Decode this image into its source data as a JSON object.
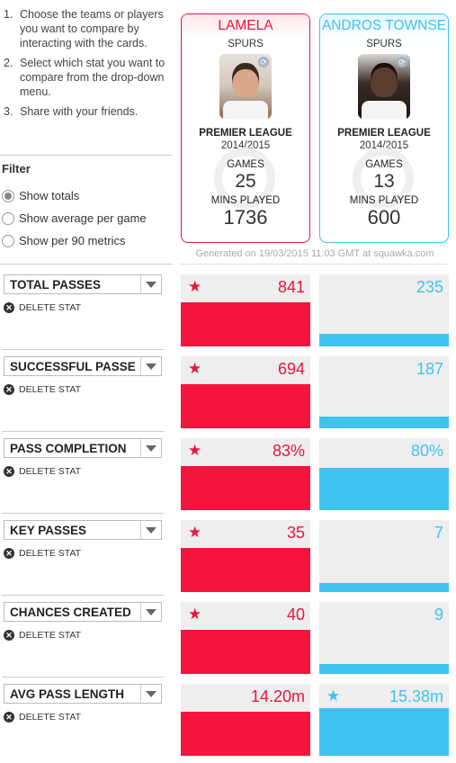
{
  "instructions": [
    {
      "num": "1.",
      "text": "Choose the teams or players you want to compare by interacting with the cards."
    },
    {
      "num": "2.",
      "text": "Select which stat you want to compare from the drop-down menu."
    },
    {
      "num": "3.",
      "text": "Share with your friends."
    }
  ],
  "filter": {
    "title": "Filter",
    "options": [
      {
        "label": "Show totals",
        "checked": true
      },
      {
        "label": "Show average per game",
        "checked": false
      },
      {
        "label": "Show per 90 metrics",
        "checked": false
      }
    ]
  },
  "players": [
    {
      "name": "LAMELA",
      "team": "SPURS",
      "league": "PREMIER LEAGUE",
      "season": "2014/2015",
      "games_label": "GAMES",
      "games": "25",
      "mins_label": "MINS PLAYED",
      "mins": "1736",
      "color": "#e8153c"
    },
    {
      "name": "ANDROS TOWNSE",
      "team": "SPURS",
      "league": "PREMIER LEAGUE",
      "season": "2014/2015",
      "games_label": "GAMES",
      "games": "13",
      "mins_label": "MINS PLAYED",
      "mins": "600",
      "color": "#3ec3ef"
    }
  ],
  "generated": "Generated on 19/03/2015 11:03 GMT at squawka.com",
  "delete_label": "DELETE STAT",
  "stats": [
    {
      "name": "TOTAL PASSES",
      "p1": "841",
      "p2": "235",
      "p1_fill": 0.61,
      "p2_fill": 0.17,
      "winner": 1
    },
    {
      "name": "SUCCESSFUL PASSE",
      "p1": "694",
      "p2": "187",
      "p1_fill": 0.61,
      "p2_fill": 0.16,
      "winner": 1
    },
    {
      "name": "PASS COMPLETION",
      "p1": "83%",
      "p2": "80%",
      "p1_fill": 0.61,
      "p2_fill": 0.59,
      "winner": 1
    },
    {
      "name": "KEY PASSES",
      "p1": "35",
      "p2": "7",
      "p1_fill": 0.61,
      "p2_fill": 0.12,
      "winner": 1
    },
    {
      "name": "CHANCES CREATED",
      "p1": "40",
      "p2": "9",
      "p1_fill": 0.61,
      "p2_fill": 0.14,
      "winner": 1
    },
    {
      "name": "AVG PASS LENGTH",
      "p1": "14.20m",
      "p2": "15.38m",
      "p1_fill": 0.61,
      "p2_fill": 0.66,
      "winner": 2
    }
  ]
}
